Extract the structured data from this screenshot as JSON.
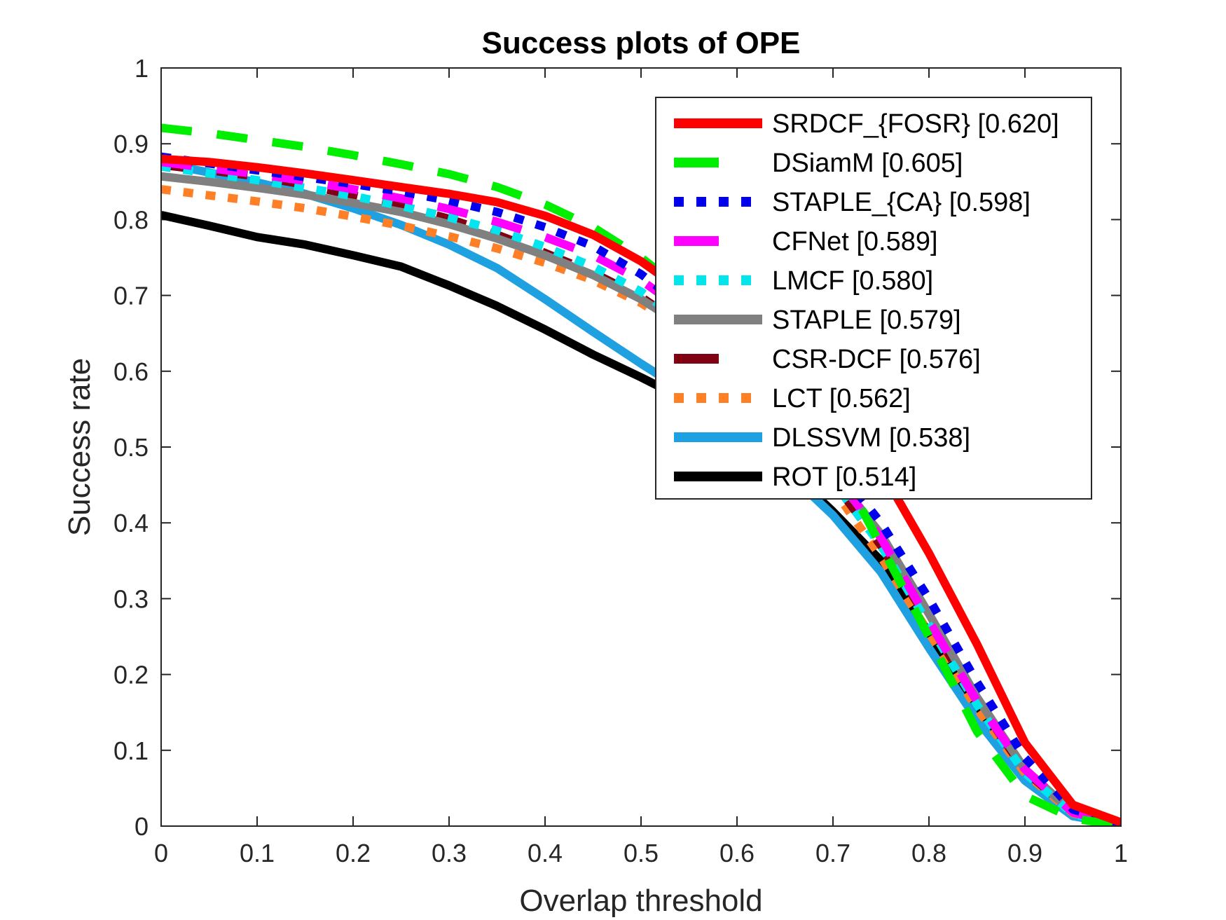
{
  "chart_data": {
    "type": "line",
    "title": "Success plots of OPE",
    "xlabel": "Overlap threshold",
    "ylabel": "Success rate",
    "xlim": [
      0,
      1
    ],
    "ylim": [
      0,
      1
    ],
    "x_ticks": [
      "0",
      "0.1",
      "0.2",
      "0.3",
      "0.4",
      "0.5",
      "0.6",
      "0.7",
      "0.8",
      "0.9",
      "1"
    ],
    "y_ticks": [
      "0",
      "0.1",
      "0.2",
      "0.3",
      "0.4",
      "0.5",
      "0.6",
      "0.7",
      "0.8",
      "0.9",
      "1"
    ],
    "grid": false,
    "legend_position": "top-right",
    "x": [
      0,
      0.05,
      0.1,
      0.15,
      0.2,
      0.25,
      0.3,
      0.35,
      0.4,
      0.45,
      0.5,
      0.55,
      0.6,
      0.65,
      0.7,
      0.75,
      0.8,
      0.85,
      0.9,
      0.95,
      1
    ],
    "series": [
      {
        "name": "SRDCF_{FOSR} [0.620]",
        "color": "#ff0000",
        "style": "solid",
        "values": [
          0.88,
          0.876,
          0.869,
          0.861,
          0.852,
          0.843,
          0.834,
          0.823,
          0.805,
          0.78,
          0.745,
          0.7,
          0.64,
          0.57,
          0.52,
          0.47,
          0.36,
          0.24,
          0.11,
          0.028,
          0.005
        ]
      },
      {
        "name": "DSiamM [0.605]",
        "color": "#00ee00",
        "style": "dash",
        "values": [
          0.921,
          0.914,
          0.905,
          0.896,
          0.885,
          0.873,
          0.86,
          0.843,
          0.82,
          0.79,
          0.75,
          0.7,
          0.64,
          0.57,
          0.49,
          0.37,
          0.25,
          0.125,
          0.04,
          0.01,
          0.001
        ]
      },
      {
        "name": "STAPLE_{CA} [0.598]",
        "color": "#0000ee",
        "style": "dot",
        "values": [
          0.883,
          0.874,
          0.865,
          0.856,
          0.847,
          0.837,
          0.825,
          0.81,
          0.79,
          0.765,
          0.728,
          0.68,
          0.62,
          0.55,
          0.48,
          0.4,
          0.3,
          0.19,
          0.09,
          0.022,
          0.003
        ]
      },
      {
        "name": "CFNet [0.589]",
        "color": "#ff00ff",
        "style": "dash",
        "values": [
          0.876,
          0.868,
          0.86,
          0.851,
          0.84,
          0.828,
          0.814,
          0.797,
          0.777,
          0.753,
          0.72,
          0.675,
          0.615,
          0.545,
          0.47,
          0.38,
          0.27,
          0.165,
          0.075,
          0.018,
          0.002
        ]
      },
      {
        "name": "LMCF [0.580]",
        "color": "#00e5ee",
        "style": "dot",
        "values": [
          0.87,
          0.861,
          0.852,
          0.842,
          0.831,
          0.818,
          0.803,
          0.786,
          0.764,
          0.738,
          0.705,
          0.66,
          0.6,
          0.53,
          0.455,
          0.37,
          0.265,
          0.16,
          0.07,
          0.016,
          0.002
        ]
      },
      {
        "name": "STAPLE [0.579]",
        "color": "#808080",
        "style": "solid",
        "values": [
          0.857,
          0.85,
          0.842,
          0.833,
          0.822,
          0.81,
          0.794,
          0.775,
          0.753,
          0.727,
          0.695,
          0.655,
          0.6,
          0.535,
          0.465,
          0.385,
          0.28,
          0.17,
          0.075,
          0.018,
          0.003
        ]
      },
      {
        "name": "CSR-DCF [0.576]",
        "color": "#800014",
        "style": "dash",
        "values": [
          0.872,
          0.865,
          0.857,
          0.846,
          0.832,
          0.818,
          0.801,
          0.78,
          0.756,
          0.73,
          0.698,
          0.655,
          0.6,
          0.53,
          0.455,
          0.37,
          0.27,
          0.165,
          0.073,
          0.018,
          0.003
        ]
      },
      {
        "name": "LCT [0.562]",
        "color": "#ff7f27",
        "style": "dot",
        "values": [
          0.84,
          0.832,
          0.824,
          0.815,
          0.804,
          0.792,
          0.778,
          0.762,
          0.743,
          0.72,
          0.69,
          0.65,
          0.595,
          0.525,
          0.445,
          0.355,
          0.255,
          0.155,
          0.07,
          0.017,
          0.002
        ]
      },
      {
        "name": "DLSSVM [0.538]",
        "color": "#1fa0e0",
        "style": "solid",
        "values": [
          0.875,
          0.862,
          0.849,
          0.834,
          0.815,
          0.793,
          0.767,
          0.736,
          0.695,
          0.652,
          0.61,
          0.57,
          0.525,
          0.47,
          0.41,
          0.335,
          0.235,
          0.14,
          0.06,
          0.013,
          0.002
        ]
      },
      {
        "name": "ROT [0.514]",
        "color": "#000000",
        "style": "solid",
        "values": [
          0.806,
          0.792,
          0.777,
          0.767,
          0.753,
          0.738,
          0.713,
          0.686,
          0.655,
          0.622,
          0.592,
          0.56,
          0.522,
          0.475,
          0.415,
          0.35,
          0.255,
          0.155,
          0.067,
          0.017,
          0.002
        ]
      }
    ]
  }
}
